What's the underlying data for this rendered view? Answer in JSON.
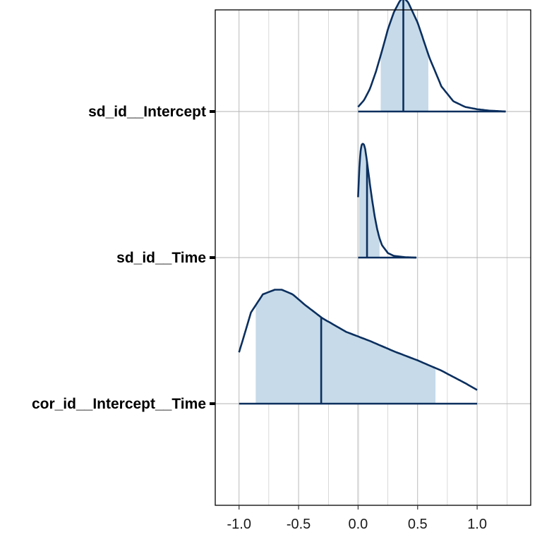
{
  "chart_data": {
    "type": "area",
    "title": "",
    "xlabel": "",
    "ylabel": "",
    "xlim": [
      -1.2,
      1.45
    ],
    "x_ticks": [
      -1.0,
      -0.5,
      0.0,
      0.5,
      1.0
    ],
    "x_tick_labels": [
      "-1.0",
      "-0.5",
      "0.0",
      "0.5",
      "1.0"
    ],
    "grid": true,
    "legend": "none",
    "colors": {
      "line": "#0b2f5e",
      "fill": "#c6dae9",
      "zero_line": "#d9d9d9",
      "grid": "#b3b3b3"
    },
    "parameters": [
      {
        "label": "sd_id__Intercept",
        "x_min": 0.0,
        "x_max": 1.24,
        "ci80": [
          0.19,
          0.59
        ],
        "median": 0.38,
        "density_x": [
          0.0,
          0.05,
          0.1,
          0.15,
          0.2,
          0.25,
          0.3,
          0.35,
          0.38,
          0.42,
          0.5,
          0.6,
          0.7,
          0.8,
          0.9,
          1.0,
          1.1,
          1.24
        ],
        "density_y": [
          0.04,
          0.1,
          0.2,
          0.35,
          0.53,
          0.72,
          0.87,
          0.97,
          1.0,
          0.96,
          0.78,
          0.47,
          0.22,
          0.09,
          0.04,
          0.02,
          0.008,
          0.0
        ]
      },
      {
        "label": "sd_id__Time",
        "x_min": 0.0,
        "x_max": 0.49,
        "ci80": [
          0.01,
          0.18
        ],
        "median": 0.075,
        "density_x": [
          0.0,
          0.01,
          0.02,
          0.03,
          0.04,
          0.05,
          0.06,
          0.07,
          0.08,
          0.1,
          0.12,
          0.14,
          0.16,
          0.18,
          0.2,
          0.25,
          0.3,
          0.4,
          0.49
        ],
        "density_y": [
          0.53,
          0.78,
          0.93,
          0.99,
          1.0,
          0.99,
          0.95,
          0.88,
          0.8,
          0.64,
          0.49,
          0.36,
          0.25,
          0.17,
          0.11,
          0.04,
          0.015,
          0.003,
          0.0
        ]
      },
      {
        "label": "cor_id__Intercept__Time",
        "x_min": -1.0,
        "x_max": 1.0,
        "ci80": [
          -0.86,
          0.65
        ],
        "median": -0.31,
        "density_x": [
          -1.0,
          -0.9,
          -0.8,
          -0.7,
          -0.64,
          -0.55,
          -0.45,
          -0.3,
          -0.1,
          0.1,
          0.3,
          0.5,
          0.7,
          0.9,
          1.0
        ],
        "density_y": [
          0.45,
          0.8,
          0.96,
          1.0,
          1.0,
          0.96,
          0.87,
          0.75,
          0.63,
          0.55,
          0.46,
          0.38,
          0.29,
          0.18,
          0.12
        ]
      }
    ]
  }
}
